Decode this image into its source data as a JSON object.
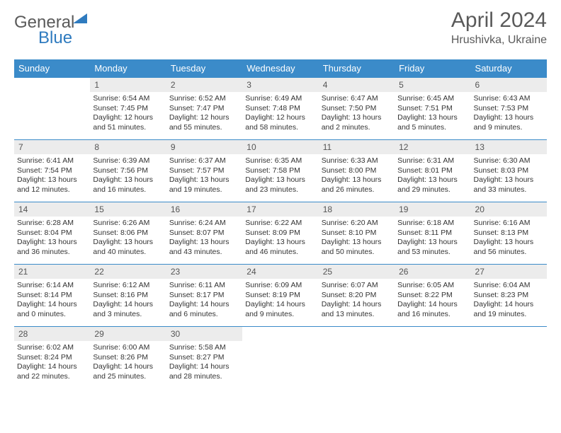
{
  "logo": {
    "part1": "General",
    "part2": "Blue"
  },
  "title": "April 2024",
  "location": "Hrushivka, Ukraine",
  "colors": {
    "header_bg": "#3b8bc9",
    "header_text": "#ffffff",
    "daynum_bg": "#ececec",
    "cell_border": "#3b8bc9",
    "body_text": "#333333",
    "title_text": "#5a5a5a"
  },
  "weekdays": [
    "Sunday",
    "Monday",
    "Tuesday",
    "Wednesday",
    "Thursday",
    "Friday",
    "Saturday"
  ],
  "weeks": [
    [
      null,
      {
        "n": "1",
        "sr": "6:54 AM",
        "ss": "7:45 PM",
        "dl": "12 hours and 51 minutes."
      },
      {
        "n": "2",
        "sr": "6:52 AM",
        "ss": "7:47 PM",
        "dl": "12 hours and 55 minutes."
      },
      {
        "n": "3",
        "sr": "6:49 AM",
        "ss": "7:48 PM",
        "dl": "12 hours and 58 minutes."
      },
      {
        "n": "4",
        "sr": "6:47 AM",
        "ss": "7:50 PM",
        "dl": "13 hours and 2 minutes."
      },
      {
        "n": "5",
        "sr": "6:45 AM",
        "ss": "7:51 PM",
        "dl": "13 hours and 5 minutes."
      },
      {
        "n": "6",
        "sr": "6:43 AM",
        "ss": "7:53 PM",
        "dl": "13 hours and 9 minutes."
      }
    ],
    [
      {
        "n": "7",
        "sr": "6:41 AM",
        "ss": "7:54 PM",
        "dl": "13 hours and 12 minutes."
      },
      {
        "n": "8",
        "sr": "6:39 AM",
        "ss": "7:56 PM",
        "dl": "13 hours and 16 minutes."
      },
      {
        "n": "9",
        "sr": "6:37 AM",
        "ss": "7:57 PM",
        "dl": "13 hours and 19 minutes."
      },
      {
        "n": "10",
        "sr": "6:35 AM",
        "ss": "7:58 PM",
        "dl": "13 hours and 23 minutes."
      },
      {
        "n": "11",
        "sr": "6:33 AM",
        "ss": "8:00 PM",
        "dl": "13 hours and 26 minutes."
      },
      {
        "n": "12",
        "sr": "6:31 AM",
        "ss": "8:01 PM",
        "dl": "13 hours and 29 minutes."
      },
      {
        "n": "13",
        "sr": "6:30 AM",
        "ss": "8:03 PM",
        "dl": "13 hours and 33 minutes."
      }
    ],
    [
      {
        "n": "14",
        "sr": "6:28 AM",
        "ss": "8:04 PM",
        "dl": "13 hours and 36 minutes."
      },
      {
        "n": "15",
        "sr": "6:26 AM",
        "ss": "8:06 PM",
        "dl": "13 hours and 40 minutes."
      },
      {
        "n": "16",
        "sr": "6:24 AM",
        "ss": "8:07 PM",
        "dl": "13 hours and 43 minutes."
      },
      {
        "n": "17",
        "sr": "6:22 AM",
        "ss": "8:09 PM",
        "dl": "13 hours and 46 minutes."
      },
      {
        "n": "18",
        "sr": "6:20 AM",
        "ss": "8:10 PM",
        "dl": "13 hours and 50 minutes."
      },
      {
        "n": "19",
        "sr": "6:18 AM",
        "ss": "8:11 PM",
        "dl": "13 hours and 53 minutes."
      },
      {
        "n": "20",
        "sr": "6:16 AM",
        "ss": "8:13 PM",
        "dl": "13 hours and 56 minutes."
      }
    ],
    [
      {
        "n": "21",
        "sr": "6:14 AM",
        "ss": "8:14 PM",
        "dl": "14 hours and 0 minutes."
      },
      {
        "n": "22",
        "sr": "6:12 AM",
        "ss": "8:16 PM",
        "dl": "14 hours and 3 minutes."
      },
      {
        "n": "23",
        "sr": "6:11 AM",
        "ss": "8:17 PM",
        "dl": "14 hours and 6 minutes."
      },
      {
        "n": "24",
        "sr": "6:09 AM",
        "ss": "8:19 PM",
        "dl": "14 hours and 9 minutes."
      },
      {
        "n": "25",
        "sr": "6:07 AM",
        "ss": "8:20 PM",
        "dl": "14 hours and 13 minutes."
      },
      {
        "n": "26",
        "sr": "6:05 AM",
        "ss": "8:22 PM",
        "dl": "14 hours and 16 minutes."
      },
      {
        "n": "27",
        "sr": "6:04 AM",
        "ss": "8:23 PM",
        "dl": "14 hours and 19 minutes."
      }
    ],
    [
      {
        "n": "28",
        "sr": "6:02 AM",
        "ss": "8:24 PM",
        "dl": "14 hours and 22 minutes."
      },
      {
        "n": "29",
        "sr": "6:00 AM",
        "ss": "8:26 PM",
        "dl": "14 hours and 25 minutes."
      },
      {
        "n": "30",
        "sr": "5:58 AM",
        "ss": "8:27 PM",
        "dl": "14 hours and 28 minutes."
      },
      null,
      null,
      null,
      null
    ]
  ],
  "labels": {
    "sunrise": "Sunrise:",
    "sunset": "Sunset:",
    "daylight": "Daylight:"
  }
}
